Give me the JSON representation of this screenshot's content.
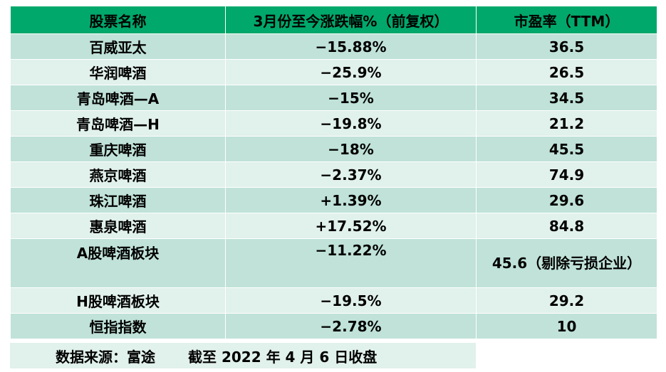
{
  "table": {
    "headers": [
      "股票名称",
      "3月份至今涨跌幅%（前复权）",
      "市盈率（TTM）"
    ],
    "rows": [
      {
        "name": "百威亚太",
        "change": "−15.88%",
        "direction": "down",
        "pe": "36.5"
      },
      {
        "name": "华润啤酒",
        "change": "−25.9%",
        "direction": "down",
        "pe": "26.5"
      },
      {
        "name": "青岛啤酒—A",
        "change": "−15%",
        "direction": "down",
        "pe": "34.5"
      },
      {
        "name": "青岛啤酒—H",
        "change": "−19.8%",
        "direction": "down",
        "pe": "21.2"
      },
      {
        "name": "重庆啤酒",
        "change": "−18%",
        "direction": "down",
        "pe": "45.5"
      },
      {
        "name": "燕京啤酒",
        "change": "−2.37%",
        "direction": "down",
        "pe": "74.9"
      },
      {
        "name": "珠江啤酒",
        "change": "+1.39%",
        "direction": "up",
        "pe": "29.6"
      },
      {
        "name": "惠泉啤酒",
        "change": "+17.52%",
        "direction": "up",
        "pe": "84.8"
      },
      {
        "name": "A股啤酒板块",
        "change": "−11.22%",
        "direction": "down",
        "pe": "45.6（剔除亏损企业）"
      },
      {
        "name": "H股啤酒板块",
        "change": "−19.5%",
        "direction": "down",
        "pe": "29.2"
      },
      {
        "name": "恒指指数",
        "change": "−2.78%",
        "direction": "down",
        "pe": "10"
      }
    ]
  },
  "footer": {
    "source": "数据来源：富途",
    "date_note": "截至 2022 年 4 月 6 日收盘"
  },
  "colors": {
    "header_bg": "#00a86b",
    "row_dark": "#c0e2d8",
    "row_light": "#e1f1ec",
    "negative": "#00b050",
    "positive": "#ff0000"
  }
}
